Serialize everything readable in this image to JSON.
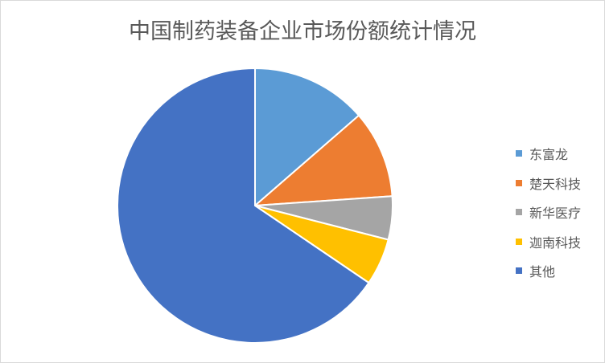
{
  "chart_data": {
    "type": "pie",
    "title": "中国制药装备企业市场份额统计情况",
    "unit": "%",
    "categories": [
      "东富龙",
      "楚天科技",
      "新华医疗",
      "迦南科技",
      "其他"
    ],
    "values": [
      13.6,
      10.3,
      5.1,
      5.5,
      65.5
    ],
    "colors": [
      "#5b9bd5",
      "#ed7d31",
      "#a5a5a5",
      "#ffc000",
      "#4472c4"
    ],
    "legend_position": "right"
  }
}
